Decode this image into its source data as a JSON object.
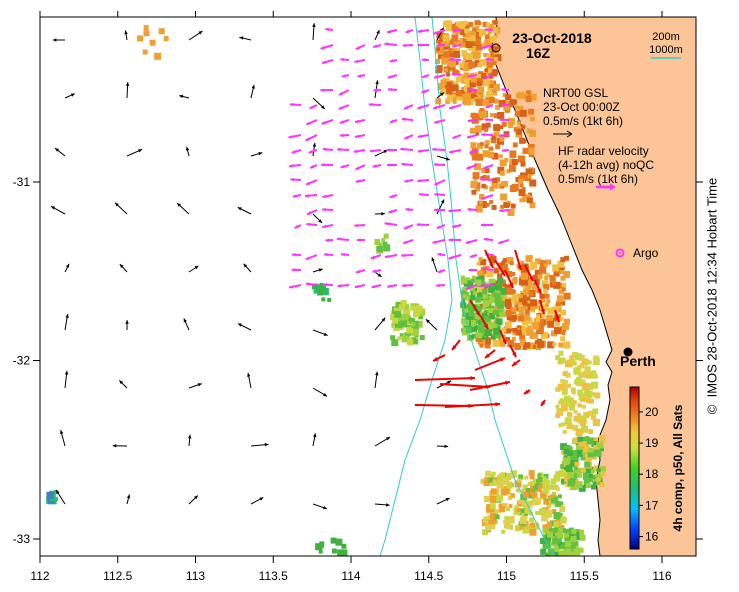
{
  "map": {
    "date_title": "23-Oct-2018",
    "time_title": "16Z",
    "scale_contours": [
      "200m",
      "1000m"
    ],
    "x_ticks": [
      "112",
      "112.5",
      "113",
      "113.5",
      "114",
      "114.5",
      "115",
      "115.5",
      "116"
    ],
    "y_ticks": [
      "-31",
      "-32",
      "-33"
    ],
    "legend": {
      "model_title": "NRT00 GSL",
      "model_time": "23-Oct 00:00Z",
      "model_scale": "0.5m/s (1kt 6h)",
      "radar_title": "HF radar velocity",
      "radar_subtitle": "(4-12h avg) noQC",
      "radar_scale": "0.5m/s (1kt 6h)"
    },
    "argo_label": "Argo",
    "city_label": "Perth",
    "colorbar": {
      "label": "4h comp, p50, All Sats",
      "ticks": [
        "16",
        "17",
        "18",
        "19",
        "20"
      ],
      "range": [
        15.6,
        20.8
      ]
    },
    "credit": "IMOS 28-Oct-2018 12:34 Hobart Time",
    "copyright": "©",
    "colors": {
      "land": "#fbc597",
      "isobath": "#33cccc",
      "radar_arrow": "#ff33ff",
      "fast_arrow": "#ee0000",
      "model_arrow": "#000000"
    }
  }
}
